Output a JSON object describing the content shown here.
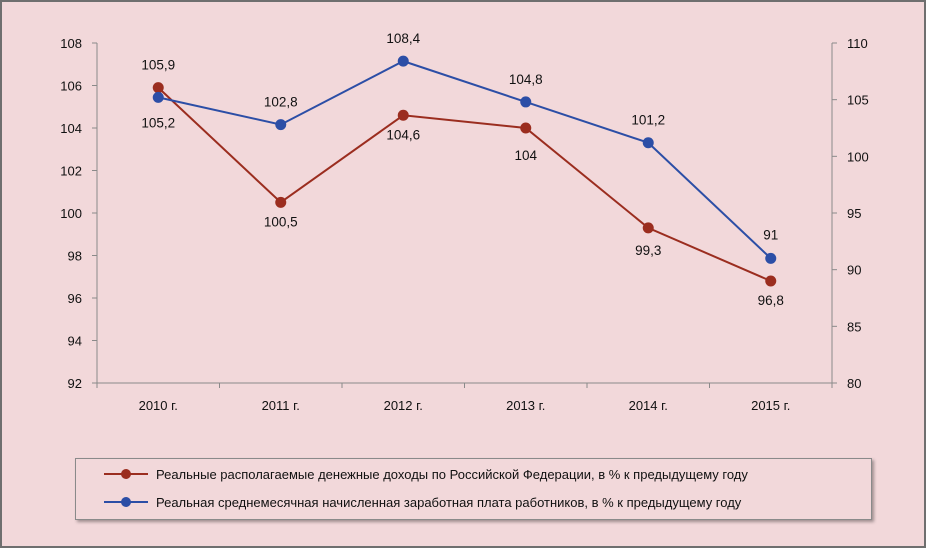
{
  "chart_data": {
    "type": "line",
    "categories": [
      "2010 г.",
      "2011 г.",
      "2012 г.",
      "2013 г.",
      "2014 г.",
      "2015 г."
    ],
    "series": [
      {
        "name": "Реальные располагаемые денежные доходы по Российской Федерации, в % к предыдущему году",
        "axis": "left",
        "color": "#9b2d1f",
        "values": [
          105.9,
          100.5,
          104.6,
          104,
          99.3,
          96.8
        ],
        "labels": [
          "105,9",
          "100,5",
          "104,6",
          "104",
          "99,3",
          "96,8"
        ]
      },
      {
        "name": "Реальная среднемесячная начисленная заработная плата работников, в % к предыдущему году",
        "axis": "right",
        "color": "#2c4ea6",
        "values": [
          105.2,
          102.8,
          108.4,
          104.8,
          101.2,
          91
        ],
        "labels": [
          "105,2",
          "102,8",
          "108,4",
          "104,8",
          "101,2",
          "91"
        ]
      }
    ],
    "y_left": {
      "min": 92,
      "max": 108,
      "ticks": [
        "92",
        "94",
        "96",
        "98",
        "100",
        "102",
        "104",
        "106",
        "108"
      ]
    },
    "y_right": {
      "min": 80,
      "max": 110,
      "ticks": [
        "80",
        "85",
        "90",
        "95",
        "100",
        "105",
        "110"
      ]
    },
    "grid": false,
    "legend_position": "bottom"
  }
}
